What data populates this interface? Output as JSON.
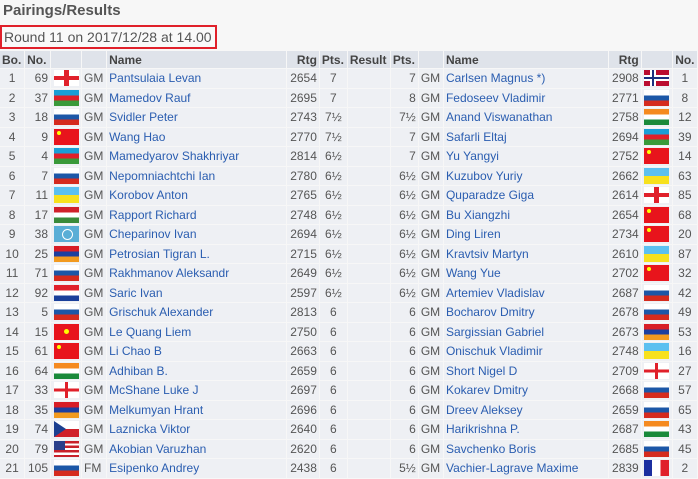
{
  "page_title": "Pairings/Results",
  "round_info": "Round 11 on 2017/12/28 at 14.00",
  "headers": {
    "board": "Bo.",
    "no": "No.",
    "name": "Name",
    "rtg": "Rtg",
    "pts": "Pts.",
    "result": "Result",
    "pts2": "Pts.",
    "name2": "Name",
    "rtg2": "Rtg",
    "no2": "No."
  },
  "rows": [
    {
      "bo": "1",
      "no": "69",
      "flag": "GEO",
      "title": "GM",
      "name": "Pantsulaia Levan",
      "rtg": "2654",
      "pts": "7",
      "result": "",
      "pts2": "7",
      "title2": "GM",
      "name2": "Carlsen Magnus *)",
      "rtg2": "2908",
      "flag2": "NOR",
      "no2": "1"
    },
    {
      "bo": "2",
      "no": "37",
      "flag": "AZE",
      "title": "GM",
      "name": "Mamedov Rauf",
      "rtg": "2695",
      "pts": "7",
      "result": "",
      "pts2": "8",
      "title2": "GM",
      "name2": "Fedoseev Vladimir",
      "rtg2": "2771",
      "flag2": "RUS",
      "no2": "8"
    },
    {
      "bo": "3",
      "no": "18",
      "flag": "RUS",
      "title": "GM",
      "name": "Svidler Peter",
      "rtg": "2743",
      "pts": "7½",
      "result": "",
      "pts2": "7½",
      "title2": "GM",
      "name2": "Anand Viswanathan",
      "rtg2": "2758",
      "flag2": "IND",
      "no2": "12"
    },
    {
      "bo": "4",
      "no": "9",
      "flag": "CHN",
      "title": "GM",
      "name": "Wang Hao",
      "rtg": "2770",
      "pts": "7½",
      "result": "",
      "pts2": "7",
      "title2": "GM",
      "name2": "Safarli Eltaj",
      "rtg2": "2694",
      "flag2": "AZE",
      "no2": "39"
    },
    {
      "bo": "5",
      "no": "4",
      "flag": "AZE",
      "title": "GM",
      "name": "Mamedyarov Shakhriyar",
      "rtg": "2814",
      "pts": "6½",
      "result": "",
      "pts2": "7",
      "title2": "GM",
      "name2": "Yu Yangyi",
      "rtg2": "2752",
      "flag2": "CHN",
      "no2": "14"
    },
    {
      "bo": "6",
      "no": "7",
      "flag": "RUS",
      "title": "GM",
      "name": "Nepomniachtchi Ian",
      "rtg": "2780",
      "pts": "6½",
      "result": "",
      "pts2": "6½",
      "title2": "GM",
      "name2": "Kuzubov Yuriy",
      "rtg2": "2662",
      "flag2": "UKR",
      "no2": "63"
    },
    {
      "bo": "7",
      "no": "11",
      "flag": "UKR",
      "title": "GM",
      "name": "Korobov Anton",
      "rtg": "2765",
      "pts": "6½",
      "result": "",
      "pts2": "6½",
      "title2": "GM",
      "name2": "Quparadze Giga",
      "rtg2": "2614",
      "flag2": "GEO",
      "no2": "85"
    },
    {
      "bo": "8",
      "no": "17",
      "flag": "HUN",
      "title": "GM",
      "name": "Rapport Richard",
      "rtg": "2748",
      "pts": "6½",
      "result": "",
      "pts2": "6½",
      "title2": "GM",
      "name2": "Bu Xiangzhi",
      "rtg2": "2654",
      "flag2": "CHN",
      "no2": "68"
    },
    {
      "bo": "9",
      "no": "38",
      "flag": "FID",
      "title": "GM",
      "name": "Cheparinov Ivan",
      "rtg": "2694",
      "pts": "6½",
      "result": "",
      "pts2": "6½",
      "title2": "GM",
      "name2": "Ding Liren",
      "rtg2": "2734",
      "flag2": "CHN",
      "no2": "20"
    },
    {
      "bo": "10",
      "no": "25",
      "flag": "ARM",
      "title": "GM",
      "name": "Petrosian Tigran L.",
      "rtg": "2715",
      "pts": "6½",
      "result": "",
      "pts2": "6½",
      "title2": "GM",
      "name2": "Kravtsiv Martyn",
      "rtg2": "2610",
      "flag2": "UKR",
      "no2": "87"
    },
    {
      "bo": "11",
      "no": "71",
      "flag": "RUS",
      "title": "GM",
      "name": "Rakhmanov Aleksandr",
      "rtg": "2649",
      "pts": "6½",
      "result": "",
      "pts2": "6½",
      "title2": "GM",
      "name2": "Wang Yue",
      "rtg2": "2702",
      "flag2": "CHN",
      "no2": "32"
    },
    {
      "bo": "12",
      "no": "92",
      "flag": "CRO",
      "title": "GM",
      "name": "Saric Ivan",
      "rtg": "2597",
      "pts": "6½",
      "result": "",
      "pts2": "6½",
      "title2": "GM",
      "name2": "Artemiev Vladislav",
      "rtg2": "2687",
      "flag2": "RUS",
      "no2": "42"
    },
    {
      "bo": "13",
      "no": "5",
      "flag": "RUS",
      "title": "GM",
      "name": "Grischuk Alexander",
      "rtg": "2813",
      "pts": "6",
      "result": "",
      "pts2": "6",
      "title2": "GM",
      "name2": "Bocharov Dmitry",
      "rtg2": "2678",
      "flag2": "RUS",
      "no2": "49"
    },
    {
      "bo": "14",
      "no": "15",
      "flag": "VIE",
      "title": "GM",
      "name": "Le Quang Liem",
      "rtg": "2750",
      "pts": "6",
      "result": "",
      "pts2": "6",
      "title2": "GM",
      "name2": "Sargissian Gabriel",
      "rtg2": "2673",
      "flag2": "ARM",
      "no2": "53"
    },
    {
      "bo": "15",
      "no": "61",
      "flag": "CHN",
      "title": "GM",
      "name": "Li Chao B",
      "rtg": "2663",
      "pts": "6",
      "result": "",
      "pts2": "6",
      "title2": "GM",
      "name2": "Onischuk Vladimir",
      "rtg2": "2748",
      "flag2": "UKR",
      "no2": "16"
    },
    {
      "bo": "16",
      "no": "64",
      "flag": "IND",
      "title": "GM",
      "name": "Adhiban B.",
      "rtg": "2659",
      "pts": "6",
      "result": "",
      "pts2": "6",
      "title2": "GM",
      "name2": "Short Nigel D",
      "rtg2": "2709",
      "flag2": "ENG",
      "no2": "27"
    },
    {
      "bo": "17",
      "no": "33",
      "flag": "ENG",
      "title": "GM",
      "name": "McShane Luke J",
      "rtg": "2697",
      "pts": "6",
      "result": "",
      "pts2": "6",
      "title2": "GM",
      "name2": "Kokarev Dmitry",
      "rtg2": "2668",
      "flag2": "RUS",
      "no2": "57"
    },
    {
      "bo": "18",
      "no": "35",
      "flag": "ARM",
      "title": "GM",
      "name": "Melkumyan Hrant",
      "rtg": "2696",
      "pts": "6",
      "result": "",
      "pts2": "6",
      "title2": "GM",
      "name2": "Dreev Aleksey",
      "rtg2": "2659",
      "flag2": "RUS",
      "no2": "65"
    },
    {
      "bo": "19",
      "no": "74",
      "flag": "CZE",
      "title": "GM",
      "name": "Laznicka Viktor",
      "rtg": "2640",
      "pts": "6",
      "result": "",
      "pts2": "6",
      "title2": "GM",
      "name2": "Harikrishna P.",
      "rtg2": "2687",
      "flag2": "IND",
      "no2": "43"
    },
    {
      "bo": "20",
      "no": "79",
      "flag": "USA",
      "title": "GM",
      "name": "Akobian Varuzhan",
      "rtg": "2620",
      "pts": "6",
      "result": "",
      "pts2": "6",
      "title2": "GM",
      "name2": "Savchenko Boris",
      "rtg2": "2685",
      "flag2": "RUS",
      "no2": "45"
    },
    {
      "bo": "21",
      "no": "105",
      "flag": "RUS",
      "title": "FM",
      "name": "Esipenko Andrey",
      "rtg": "2438",
      "pts": "6",
      "result": "",
      "pts2": "5½",
      "title2": "GM",
      "name2": "Vachier-Lagrave Maxime",
      "rtg2": "2839",
      "flag2": "FRA",
      "no2": "2"
    }
  ]
}
